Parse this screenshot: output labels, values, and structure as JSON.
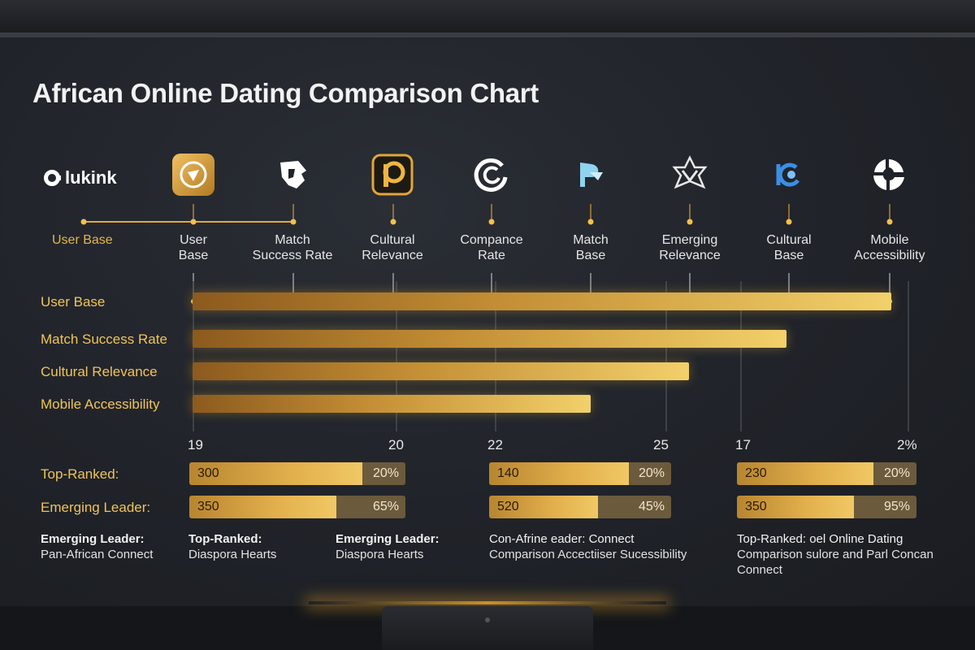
{
  "title": "African Online Dating Comparison Chart",
  "logo": {
    "text": "lukink"
  },
  "brand_icons": [
    {
      "name": "compass-app-icon",
      "color": "#e0a23a"
    },
    {
      "name": "lion-head-icon",
      "color": "#ffffff"
    },
    {
      "name": "p-app-icon",
      "color": "#e0a23a"
    },
    {
      "name": "c-ring-icon",
      "color": "#ffffff"
    },
    {
      "name": "p-arrow-icon",
      "color": "#8fd3ee"
    },
    {
      "name": "star-badge-icon",
      "color": "#e8e8e8"
    },
    {
      "name": "b-ring-icon",
      "color": "#3a8fe6"
    },
    {
      "name": "swirl-icon",
      "color": "#ffffff"
    }
  ],
  "column_labels": [
    "User Base",
    "User\nBase",
    "Match\nSuccess Rate",
    "Cultural\nRelevance",
    "Compance\nRate",
    "Match\nBase",
    "Emerging\nRelevance",
    "Cultural\nBase",
    "Mobile\nAccessibility"
  ],
  "chart_data": {
    "type": "bar",
    "title": "African Online Dating Comparison Chart",
    "categories": [
      "User Base",
      "Match Success Rate",
      "Cultural Relevance",
      "Mobile Accessibility"
    ],
    "values": [
      100,
      85,
      71,
      57
    ],
    "tick_labels": [
      "19",
      "20",
      "22",
      "25",
      "17",
      "2%"
    ],
    "grid": true
  },
  "stats": {
    "rows": [
      {
        "label": "Top-Ranked:"
      },
      {
        "label": "Emerging Leader:"
      }
    ],
    "groups": [
      {
        "items": [
          {
            "number": "300",
            "percent": "20%",
            "fill": 0.8
          },
          {
            "number": "350",
            "percent": "65%",
            "fill": 0.68
          }
        ]
      },
      {
        "items": [
          {
            "number": "140",
            "percent": "20%",
            "fill": 0.77
          },
          {
            "number": "520",
            "percent": "45%",
            "fill": 0.6
          }
        ]
      },
      {
        "items": [
          {
            "number": "230",
            "percent": "20%",
            "fill": 0.76
          },
          {
            "number": "350",
            "percent": "95%",
            "fill": 0.65
          }
        ]
      }
    ]
  },
  "notes": [
    {
      "bold": "Emerging Leader:",
      "text": "Pan-African Connect"
    },
    {
      "bold": "Top-Ranked:",
      "text": "Diaspora Hearts"
    },
    {
      "bold": "Emerging Leader:",
      "text": "Diaspora Hearts"
    },
    {
      "bold": "Con-Afrine eader: Connect",
      "text": "Comparison Accectiiser Sucessibility"
    },
    {
      "bold": "Top-Ranked: oel Online Dating",
      "text": "Comparison sulore and Parl Concan Connect"
    }
  ]
}
